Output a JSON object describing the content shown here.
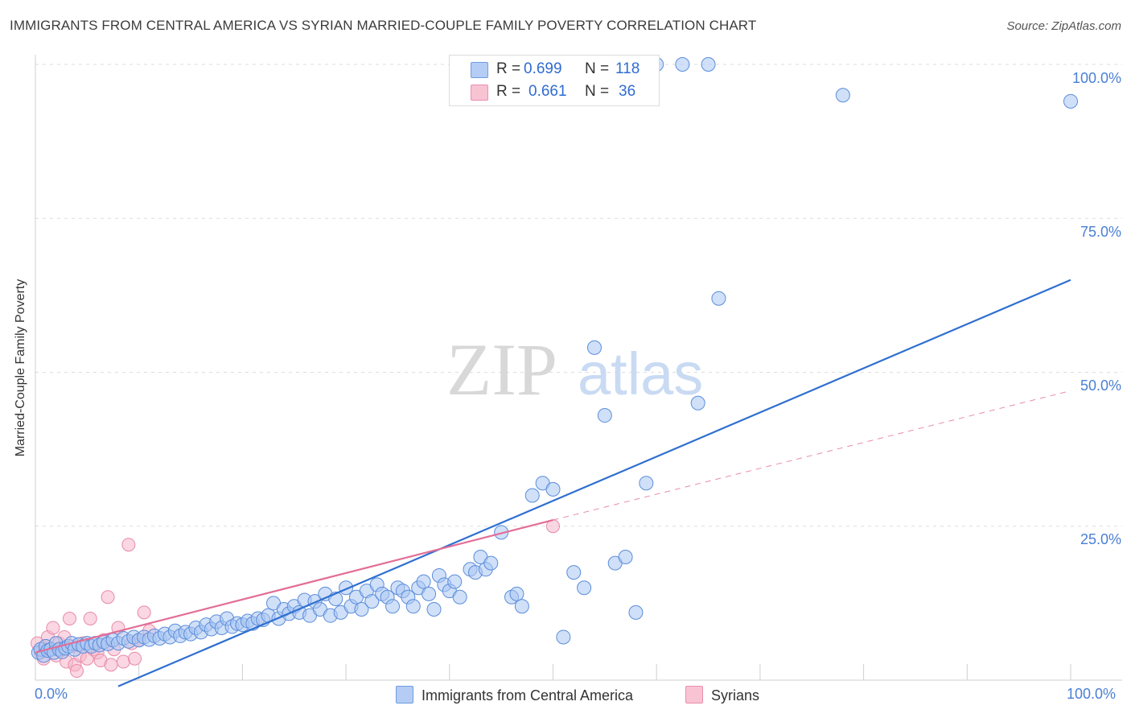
{
  "title": "IMMIGRANTS FROM CENTRAL AMERICA VS SYRIAN MARRIED-COUPLE FAMILY POVERTY CORRELATION CHART",
  "source": "Source: ZipAtlas.com",
  "watermark": {
    "zip": "ZIP",
    "atlas": "atlas"
  },
  "colors": {
    "blue": "#2f6fd0",
    "blue_fill": "#aac6f2",
    "pink": "#e36e98",
    "pink_fill": "#f6b6ca",
    "grid": "#dcdcdc",
    "tick": "#4a7fd4"
  },
  "legend": {
    "rows": [
      {
        "r_label": "R =",
        "r_value": "0.699",
        "n_label": "N =",
        "n_value": "118"
      },
      {
        "r_label": "R =",
        "r_value": "0.661",
        "n_label": "N =",
        "n_value": "36"
      }
    ]
  },
  "bottom_legend": [
    "Immigrants from Central America",
    "Syrians"
  ],
  "chart_data": {
    "type": "scatter",
    "title": "IMMIGRANTS FROM CENTRAL AMERICA VS SYRIAN MARRIED-COUPLE FAMILY POVERTY CORRELATION CHART",
    "xlabel": "",
    "ylabel": "Married-Couple Family Poverty",
    "xlim": [
      0,
      100
    ],
    "ylim": [
      0,
      100
    ],
    "x_tick_labels": [
      "0.0%",
      "100.0%"
    ],
    "y_ticks": [
      25,
      50,
      75,
      100
    ],
    "y_tick_labels": [
      "25.0%",
      "50.0%",
      "75.0%",
      "100.0%"
    ],
    "grid": true,
    "series": [
      {
        "name": "Immigrants from Central America",
        "r": 0.699,
        "n": 118,
        "trendline": {
          "x": [
            8,
            100
          ],
          "y": [
            -1,
            65
          ]
        },
        "points": [
          [
            0.3,
            4.5
          ],
          [
            0.5,
            5
          ],
          [
            0.8,
            4
          ],
          [
            1,
            5.5
          ],
          [
            1.2,
            4.8
          ],
          [
            1.5,
            5
          ],
          [
            1.8,
            4.5
          ],
          [
            2,
            6
          ],
          [
            2.3,
            5
          ],
          [
            2.6,
            4.6
          ],
          [
            2.9,
            5.2
          ],
          [
            3.2,
            5.5
          ],
          [
            3.5,
            6
          ],
          [
            3.8,
            5
          ],
          [
            4.2,
            5.8
          ],
          [
            4.6,
            5.5
          ],
          [
            5,
            6
          ],
          [
            5.4,
            5.5
          ],
          [
            5.8,
            6
          ],
          [
            6.2,
            5.7
          ],
          [
            6.6,
            6.2
          ],
          [
            7,
            5.9
          ],
          [
            7.5,
            6.5
          ],
          [
            8,
            6
          ],
          [
            8.5,
            6.8
          ],
          [
            9,
            6.3
          ],
          [
            9.5,
            7
          ],
          [
            10,
            6.5
          ],
          [
            10.5,
            7
          ],
          [
            11,
            6.6
          ],
          [
            11.5,
            7.2
          ],
          [
            12,
            6.8
          ],
          [
            12.5,
            7.5
          ],
          [
            13,
            7
          ],
          [
            13.5,
            8
          ],
          [
            14,
            7.2
          ],
          [
            14.5,
            7.8
          ],
          [
            15,
            7.5
          ],
          [
            15.5,
            8.5
          ],
          [
            16,
            7.8
          ],
          [
            16.5,
            9
          ],
          [
            17,
            8.3
          ],
          [
            17.5,
            9.5
          ],
          [
            18,
            8.5
          ],
          [
            18.5,
            10
          ],
          [
            19,
            8.7
          ],
          [
            19.5,
            9.2
          ],
          [
            20,
            9
          ],
          [
            20.5,
            9.6
          ],
          [
            21,
            9.2
          ],
          [
            21.5,
            10
          ],
          [
            22,
            9.8
          ],
          [
            22.5,
            10.5
          ],
          [
            23,
            12.5
          ],
          [
            23.5,
            10
          ],
          [
            24,
            11.5
          ],
          [
            24.5,
            10.8
          ],
          [
            25,
            12
          ],
          [
            25.5,
            11
          ],
          [
            26,
            13
          ],
          [
            26.5,
            10.5
          ],
          [
            27,
            12.8
          ],
          [
            27.5,
            11.5
          ],
          [
            28,
            14
          ],
          [
            28.5,
            10.5
          ],
          [
            29,
            13.2
          ],
          [
            29.5,
            11
          ],
          [
            30,
            15
          ],
          [
            30.5,
            12
          ],
          [
            31,
            13.5
          ],
          [
            31.5,
            11.5
          ],
          [
            32,
            14.5
          ],
          [
            32.5,
            12.8
          ],
          [
            33,
            15.5
          ],
          [
            33.5,
            14
          ],
          [
            34,
            13.5
          ],
          [
            34.5,
            12
          ],
          [
            35,
            15
          ],
          [
            35.5,
            14.5
          ],
          [
            36,
            13.5
          ],
          [
            36.5,
            12
          ],
          [
            37,
            15
          ],
          [
            37.5,
            16
          ],
          [
            38,
            14
          ],
          [
            38.5,
            11.5
          ],
          [
            39,
            17
          ],
          [
            39.5,
            15.5
          ],
          [
            40,
            14.5
          ],
          [
            40.5,
            16
          ],
          [
            41,
            13.5
          ],
          [
            42,
            18
          ],
          [
            42.5,
            17.5
          ],
          [
            43,
            20
          ],
          [
            43.5,
            18
          ],
          [
            44,
            19
          ],
          [
            45,
            24
          ],
          [
            46,
            13.5
          ],
          [
            46.5,
            14
          ],
          [
            47,
            12
          ],
          [
            48,
            30
          ],
          [
            49,
            32
          ],
          [
            50,
            31
          ],
          [
            51,
            7
          ],
          [
            52,
            17.5
          ],
          [
            53,
            15
          ],
          [
            54,
            54
          ],
          [
            55,
            43
          ],
          [
            56,
            19
          ],
          [
            57,
            20
          ],
          [
            58,
            11
          ],
          [
            59,
            32
          ],
          [
            60,
            100
          ],
          [
            62.5,
            100
          ],
          [
            65,
            100
          ],
          [
            64,
            45
          ],
          [
            66,
            62
          ],
          [
            78,
            95
          ],
          [
            100,
            94
          ]
        ]
      },
      {
        "name": "Syrians",
        "r": 0.661,
        "n": 36,
        "trendline": {
          "x": [
            0,
            50
          ],
          "y": [
            4.5,
            26
          ]
        },
        "trendline_dashed": {
          "x": [
            50,
            100
          ],
          "y": [
            26,
            47
          ]
        },
        "points": [
          [
            0.2,
            6
          ],
          [
            0.5,
            4.5
          ],
          [
            0.8,
            3.5
          ],
          [
            1,
            5.5
          ],
          [
            1.2,
            7
          ],
          [
            1.5,
            5
          ],
          [
            1.7,
            8.5
          ],
          [
            2,
            4
          ],
          [
            2.3,
            6
          ],
          [
            2.5,
            5.2
          ],
          [
            2.8,
            7
          ],
          [
            3,
            3
          ],
          [
            3.3,
            10
          ],
          [
            3.5,
            5.5
          ],
          [
            3.8,
            2.5
          ],
          [
            4,
            1.5
          ],
          [
            4.3,
            4
          ],
          [
            4.6,
            6
          ],
          [
            5,
            3.5
          ],
          [
            5.3,
            10
          ],
          [
            5.6,
            5
          ],
          [
            6,
            4.5
          ],
          [
            6.3,
            3.2
          ],
          [
            6.6,
            6.5
          ],
          [
            7,
            13.5
          ],
          [
            7.3,
            2.5
          ],
          [
            7.6,
            5
          ],
          [
            8,
            8.5
          ],
          [
            8.5,
            3
          ],
          [
            9,
            22
          ],
          [
            9.3,
            6
          ],
          [
            9.6,
            3.5
          ],
          [
            10,
            6.5
          ],
          [
            10.5,
            11
          ],
          [
            11,
            8
          ],
          [
            50,
            25
          ]
        ]
      }
    ]
  }
}
